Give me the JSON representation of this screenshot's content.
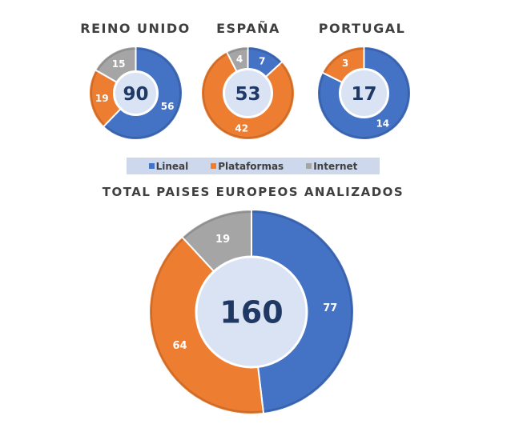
{
  "chart_data": [
    {
      "type": "pie",
      "title": "REINO UNIDO",
      "total": "90",
      "slices": [
        {
          "name": "Lineal",
          "value": 56
        },
        {
          "name": "Plataformas",
          "value": 19
        },
        {
          "name": "Internet",
          "value": 15
        }
      ]
    },
    {
      "type": "pie",
      "title": "ESPAÑA",
      "total": "53",
      "slices": [
        {
          "name": "Lineal",
          "value": 7
        },
        {
          "name": "Plataformas",
          "value": 42
        },
        {
          "name": "Internet",
          "value": 4
        }
      ]
    },
    {
      "type": "pie",
      "title": "PORTUGAL",
      "total": "17",
      "slices": [
        {
          "name": "Lineal",
          "value": 14
        },
        {
          "name": "Plataformas",
          "value": 3
        },
        {
          "name": "Internet",
          "value": 0
        }
      ]
    },
    {
      "type": "pie",
      "title": "TOTAL PAISES EUROPEOS ANALIZADOS",
      "total": "160",
      "slices": [
        {
          "name": "Lineal",
          "value": 77
        },
        {
          "name": "Plataformas",
          "value": 64
        },
        {
          "name": "Internet",
          "value": 19
        }
      ]
    }
  ],
  "legend": [
    {
      "label": "Lineal",
      "color": "#4472c4"
    },
    {
      "label": "Plataformas",
      "color": "#ed7d31"
    },
    {
      "label": "Internet",
      "color": "#a5a5a5"
    }
  ],
  "colors": {
    "Lineal": "#4472c4",
    "Plataformas": "#ed7d31",
    "Internet": "#a5a5a5",
    "center": "#dae3f3",
    "center_text": "#1f3864"
  }
}
